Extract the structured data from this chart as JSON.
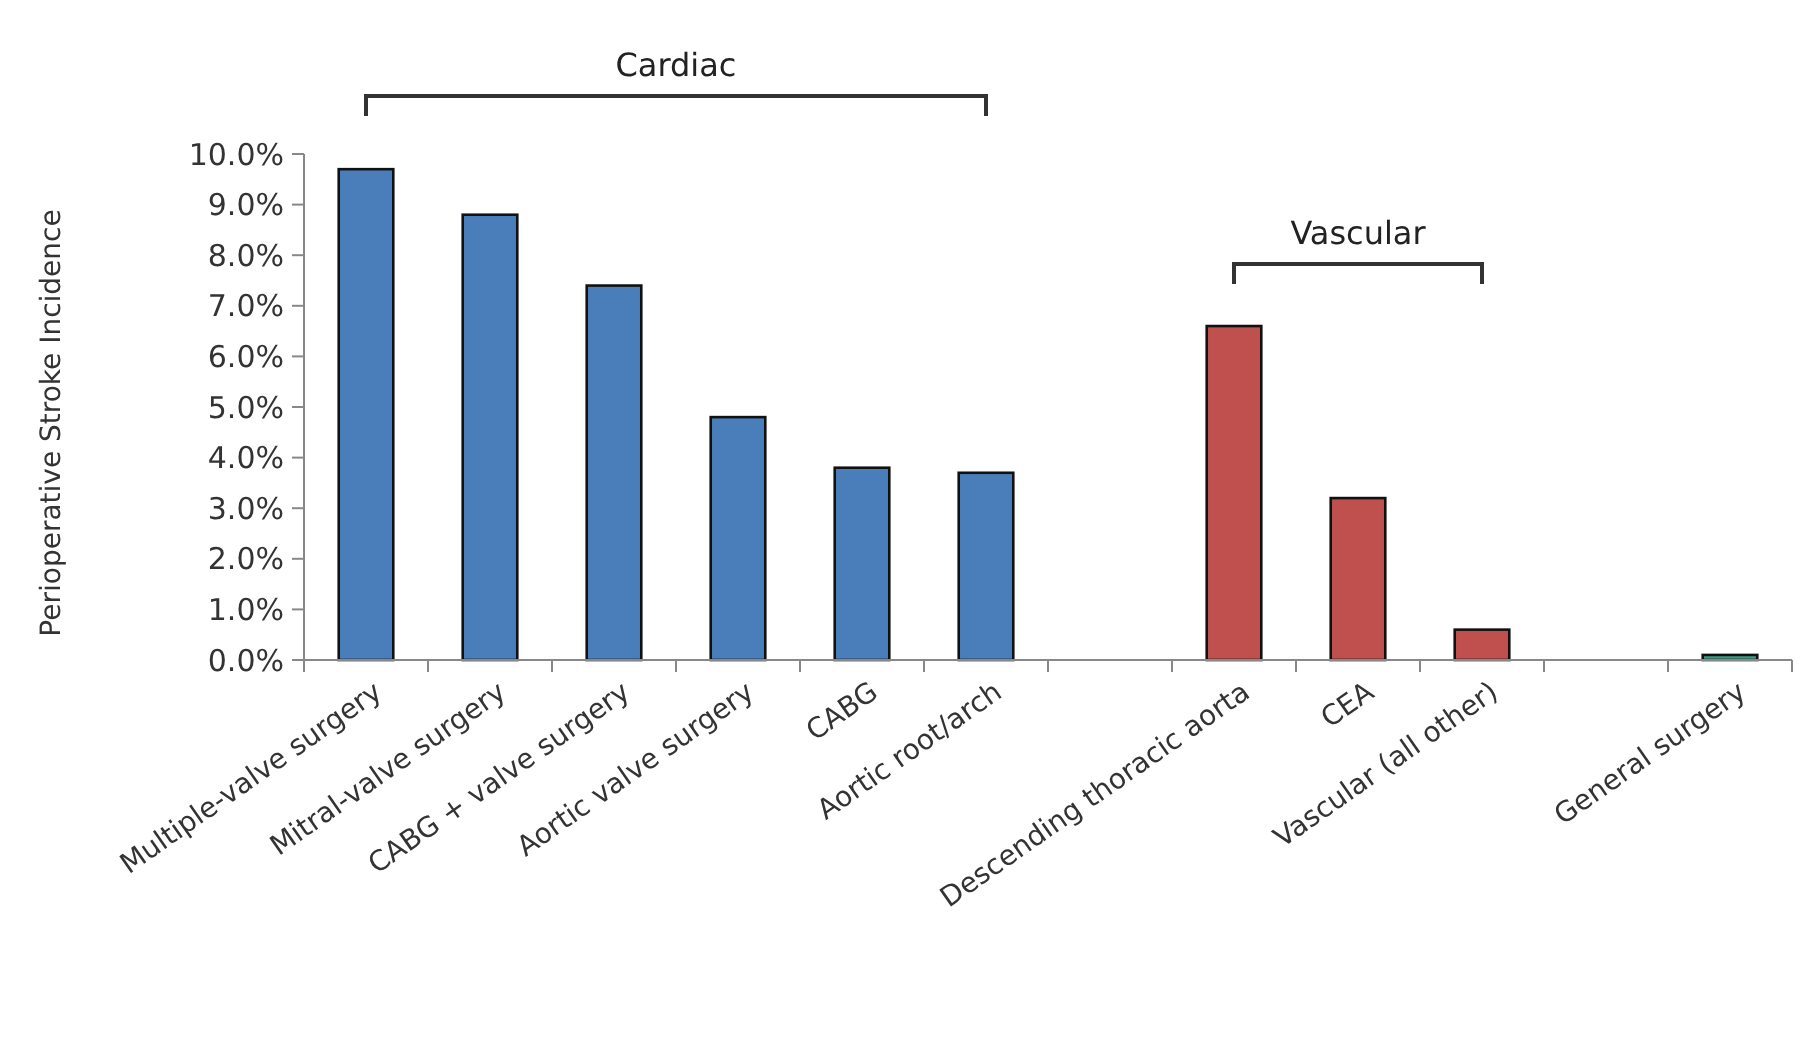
{
  "chart_data": {
    "type": "bar",
    "ylabel": "Perioperative Stroke Incidence",
    "categories": [
      "Multiple-valve surgery",
      "Mitral-valve surgery",
      "CABG + valve surgery",
      "Aortic valve surgery",
      "CABG",
      "Aortic root/arch",
      null,
      "Descending thoracic aorta",
      "CEA",
      "Vascular (all other)",
      null,
      "General surgery"
    ],
    "values": [
      9.7,
      8.8,
      7.4,
      4.8,
      3.8,
      3.7,
      null,
      6.6,
      3.2,
      0.6,
      null,
      0.1
    ],
    "colors": [
      "#4a7ebb",
      "#4a7ebb",
      "#4a7ebb",
      "#4a7ebb",
      "#4a7ebb",
      "#4a7ebb",
      null,
      "#c0504d",
      "#c0504d",
      "#c0504d",
      null,
      "#3c9c84"
    ],
    "ylim": [
      0,
      10
    ],
    "yticks": [
      {
        "value": 0,
        "label": "0.0%"
      },
      {
        "value": 1,
        "label": "1.0%"
      },
      {
        "value": 2,
        "label": "2.0%"
      },
      {
        "value": 3,
        "label": "3.0%"
      },
      {
        "value": 4,
        "label": "4.0%"
      },
      {
        "value": 5,
        "label": "5.0%"
      },
      {
        "value": 6,
        "label": "6.0%"
      },
      {
        "value": 7,
        "label": "7.0%"
      },
      {
        "value": 8,
        "label": "8.0%"
      },
      {
        "value": 9,
        "label": "9.0%"
      },
      {
        "value": 10,
        "label": "10.0%"
      }
    ],
    "annotations": [
      "Cardiac",
      "Vascular"
    ],
    "grid": false
  }
}
